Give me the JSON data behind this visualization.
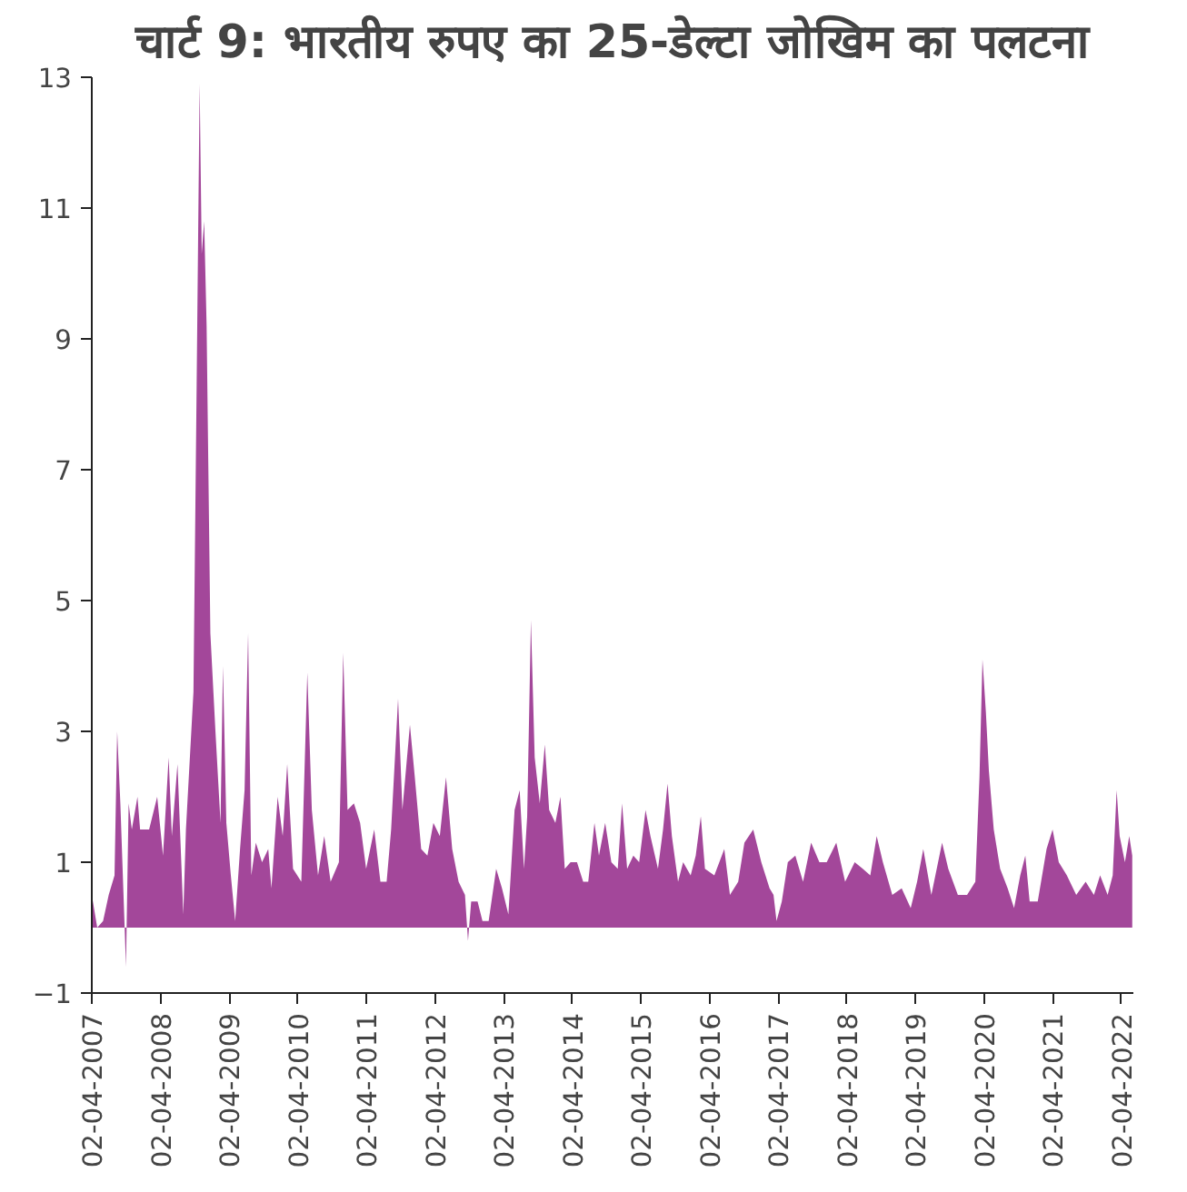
{
  "chart_data": {
    "type": "area",
    "title": "चार्ट 9: भारतीय रुपए का 25-डेल्टा जोखिम का पलटना",
    "x": [
      "2007-04-02",
      "2007-05-01",
      "2007-06-01",
      "2007-07-01",
      "2007-08-01",
      "2007-08-15",
      "2007-09-01",
      "2007-10-01",
      "2007-10-15",
      "2007-11-01",
      "2007-12-01",
      "2007-12-15",
      "2008-02-01",
      "2008-03-15",
      "2008-04-15",
      "2008-05-15",
      "2008-06-01",
      "2008-07-01",
      "2008-08-01",
      "2008-08-15",
      "2008-09-24",
      "2008-10-11",
      "2008-10-27",
      "2008-11-07",
      "2008-11-20",
      "2008-12-03",
      "2008-12-23",
      "2009-01-19",
      "2009-02-15",
      "2009-02-28",
      "2009-03-18",
      "2009-04-11",
      "2009-05-04",
      "2009-05-30",
      "2009-06-23",
      "2009-07-12",
      "2009-07-29",
      "2009-08-22",
      "2009-09-24",
      "2009-10-27",
      "2009-11-13",
      "2009-12-16",
      "2010-01-12",
      "2010-02-05",
      "2010-03-08",
      "2010-04-21",
      "2010-05-23",
      "2010-06-16",
      "2010-07-19",
      "2010-08-21",
      "2010-09-24",
      "2010-11-07",
      "2010-11-30",
      "2010-12-23",
      "2011-01-26",
      "2011-02-28",
      "2011-04-01",
      "2011-05-14",
      "2011-06-16",
      "2011-07-19",
      "2011-08-12",
      "2011-09-18",
      "2011-10-11",
      "2011-11-20",
      "2011-12-16",
      "2012-01-19",
      "2012-02-21",
      "2012-03-24",
      "2012-04-27",
      "2012-05-30",
      "2012-07-02",
      "2012-08-05",
      "2012-09-08",
      "2012-09-24",
      "2012-10-11",
      "2012-11-14",
      "2012-12-10",
      "2013-01-12",
      "2013-02-21",
      "2013-03-24",
      "2013-04-27",
      "2013-05-30",
      "2013-06-26",
      "2013-07-19",
      "2013-08-05",
      "2013-08-25",
      "2013-09-14",
      "2013-10-11",
      "2013-11-07",
      "2013-11-30",
      "2014-01-02",
      "2014-01-29",
      "2014-02-21",
      "2014-03-24",
      "2014-04-27",
      "2014-05-30",
      "2014-06-26",
      "2014-07-29",
      "2014-08-22",
      "2014-09-24",
      "2014-10-27",
      "2014-11-30",
      "2014-12-23",
      "2015-01-19",
      "2015-02-21",
      "2015-03-24",
      "2015-04-27",
      "2015-05-23",
      "2015-07-02",
      "2015-07-29",
      "2015-08-22",
      "2015-09-14",
      "2015-10-17",
      "2015-11-13",
      "2015-12-23",
      "2016-01-19",
      "2016-02-15",
      "2016-03-08",
      "2016-04-27",
      "2016-06-19",
      "2016-07-19",
      "2016-09-01",
      "2016-10-04",
      "2016-11-20",
      "2017-01-02",
      "2017-02-15",
      "2017-03-08",
      "2017-03-24",
      "2017-04-21",
      "2017-05-23",
      "2017-07-02",
      "2017-08-12",
      "2017-09-24",
      "2017-11-07",
      "2017-12-16",
      "2018-02-05",
      "2018-03-24",
      "2018-05-14",
      "2018-06-26",
      "2018-08-05",
      "2018-09-08",
      "2018-10-11",
      "2018-11-30",
      "2019-01-19",
      "2019-03-08",
      "2019-04-11",
      "2019-05-14",
      "2019-06-26",
      "2019-08-22",
      "2019-09-24",
      "2019-11-14",
      "2020-01-02",
      "2020-02-15",
      "2020-03-08",
      "2020-03-24",
      "2020-04-11",
      "2020-04-27",
      "2020-05-23",
      "2020-06-26",
      "2020-08-05",
      "2020-09-08",
      "2020-10-11",
      "2020-11-07",
      "2020-11-30",
      "2021-01-12",
      "2021-02-28",
      "2021-04-01",
      "2021-05-04",
      "2021-06-16",
      "2021-08-05",
      "2021-09-24",
      "2021-11-07",
      "2021-12-10",
      "2022-01-19",
      "2022-02-15",
      "2022-03-08",
      "2022-03-24",
      "2022-04-21",
      "2022-05-14",
      "2022-05-30"
    ],
    "series": [
      {
        "color": "#a3479a",
        "values": [
          0.5,
          0,
          0.1,
          0.5,
          0.8,
          3.0,
          1.9,
          -0.6,
          1.9,
          1.5,
          2.0,
          1.5,
          1.5,
          2.0,
          1.1,
          2.6,
          1.4,
          2.5,
          0.2,
          1.5,
          3.6,
          8.3,
          12.9,
          10.3,
          10.8,
          9.2,
          4.5,
          3.0,
          1.6,
          4.0,
          1.6,
          0.8,
          0.1,
          1.2,
          2.1,
          4.5,
          0.8,
          1.3,
          1.0,
          1.2,
          0.6,
          2.0,
          1.4,
          2.5,
          0.9,
          0.7,
          3.9,
          1.8,
          0.8,
          1.4,
          0.7,
          1.0,
          4.2,
          1.8,
          1.9,
          1.6,
          0.9,
          1.5,
          0.7,
          0.7,
          1.5,
          3.5,
          1.8,
          3.1,
          2.3,
          1.2,
          1.1,
          1.6,
          1.4,
          2.3,
          1.2,
          0.7,
          0.5,
          -0.2,
          0.4,
          0.4,
          0.1,
          0.1,
          0.9,
          0.6,
          0.2,
          1.8,
          2.1,
          0.9,
          1.7,
          4.7,
          2.6,
          1.9,
          2.8,
          1.8,
          1.6,
          2.0,
          0.9,
          1.0,
          1.0,
          0.7,
          0.7,
          1.6,
          1.1,
          1.6,
          1.0,
          0.9,
          1.9,
          0.9,
          1.1,
          1.0,
          1.8,
          1.4,
          0.9,
          1.5,
          2.2,
          1.4,
          0.7,
          1.0,
          0.8,
          1.1,
          1.7,
          0.9,
          0.8,
          1.2,
          0.5,
          0.7,
          1.3,
          1.5,
          1.0,
          0.6,
          0.5,
          0.1,
          0.4,
          1.0,
          1.1,
          0.7,
          1.3,
          1.0,
          1.0,
          1.3,
          0.7,
          1.0,
          0.9,
          0.8,
          1.4,
          1.0,
          0.5,
          0.6,
          0.3,
          0.7,
          1.2,
          0.5,
          1.3,
          0.9,
          0.5,
          0.5,
          0.7,
          2.3,
          4.1,
          3.3,
          2.4,
          1.5,
          0.9,
          0.6,
          0.3,
          0.8,
          1.1,
          0.4,
          0.4,
          1.2,
          1.5,
          1.0,
          0.8,
          0.5,
          0.7,
          0.5,
          0.8,
          0.5,
          0.8,
          2.1,
          1.4,
          1.0,
          1.4,
          1.1
        ]
      }
    ],
    "xlim": [
      "2007-04-02",
      "2022-06-05"
    ],
    "xticks": [
      {
        "value": "2007-04-02",
        "label": "02-04-2007"
      },
      {
        "value": "2008-04-02",
        "label": "02-04-2008"
      },
      {
        "value": "2009-04-02",
        "label": "02-04-2009"
      },
      {
        "value": "2010-04-02",
        "label": "02-04-2010"
      },
      {
        "value": "2011-04-02",
        "label": "02-04-2011"
      },
      {
        "value": "2012-04-02",
        "label": "02-04-2012"
      },
      {
        "value": "2013-04-02",
        "label": "02-04-2013"
      },
      {
        "value": "2014-04-02",
        "label": "02-04-2014"
      },
      {
        "value": "2015-04-02",
        "label": "02-04-2015"
      },
      {
        "value": "2016-04-02",
        "label": "02-04-2016"
      },
      {
        "value": "2017-04-02",
        "label": "02-04-2017"
      },
      {
        "value": "2018-04-02",
        "label": "02-04-2018"
      },
      {
        "value": "2019-04-02",
        "label": "02-04-2019"
      },
      {
        "value": "2020-04-02",
        "label": "02-04-2020"
      },
      {
        "value": "2021-04-02",
        "label": "02-04-2021"
      },
      {
        "value": "2022-04-02",
        "label": "02-04-2022"
      }
    ],
    "ylim": [
      -1,
      13
    ],
    "yticks": [
      -1,
      1,
      3,
      5,
      7,
      9,
      11,
      13
    ],
    "grid": false
  }
}
